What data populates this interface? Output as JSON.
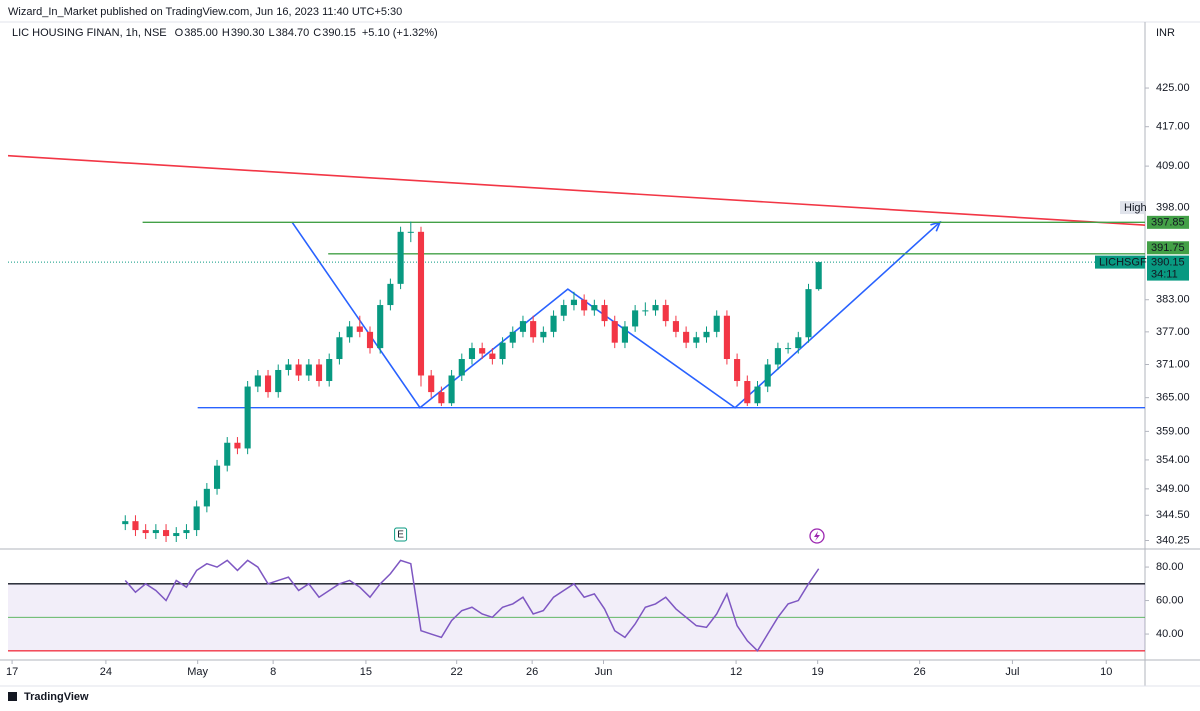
{
  "chart_data": {
    "type": "candlestick",
    "header": "Wizard_In_Market published on TradingView.com, Jun 16, 2023 11:40 UTC+5:30",
    "symbol": "LIC HOUSING FINAN, 1h, NSE",
    "ohlc_legend": [
      {
        "key": "O",
        "value": "385.00"
      },
      {
        "key": "H",
        "value": "390.30"
      },
      {
        "key": "L",
        "value": "384.70"
      },
      {
        "key": "C",
        "value": "390.15"
      }
    ],
    "change": "+5.10 (+1.32%)",
    "currency": "INR",
    "ticker": "LICHSGFIN",
    "countdown": "34:11",
    "event_marker": "E",
    "brand": "TradingView",
    "log_scale": true,
    "grid": false,
    "up_color": "#089981",
    "down_color": "#f23645",
    "ylim": [
      339.5,
      437.3
    ],
    "yticks": [
      {
        "value": 425,
        "label": "425.00"
      },
      {
        "value": 417,
        "label": "417.00"
      },
      {
        "value": 409,
        "label": "409.00"
      },
      {
        "value": 383,
        "label": "383.00"
      },
      {
        "value": 377,
        "label": "377.00"
      },
      {
        "value": 371,
        "label": "371.00"
      },
      {
        "value": 365,
        "label": "365.00"
      },
      {
        "value": 359,
        "label": "359.00"
      },
      {
        "value": 354,
        "label": "354.00"
      },
      {
        "value": 349,
        "label": "349.00"
      },
      {
        "value": 344.5,
        "label": "344.50"
      },
      {
        "value": 340.25,
        "label": "340.25"
      }
    ],
    "xlim": [
      -11,
      100.5
    ],
    "xticks": [
      {
        "value": -10.6,
        "label": "17"
      },
      {
        "value": -1.4,
        "label": "24"
      },
      {
        "value": 7.6,
        "label": "May"
      },
      {
        "value": 15.0,
        "label": "8"
      },
      {
        "value": 24.1,
        "label": "15"
      },
      {
        "value": 33.0,
        "label": "22"
      },
      {
        "value": 40.4,
        "label": "26"
      },
      {
        "value": 47.4,
        "label": "Jun"
      },
      {
        "value": 60.4,
        "label": "12"
      },
      {
        "value": 68.4,
        "label": "19"
      },
      {
        "value": 78.4,
        "label": "26"
      },
      {
        "value": 87.5,
        "label": "Jul"
      },
      {
        "value": 96.7,
        "label": "10"
      }
    ],
    "open": [
      343,
      343.5,
      342,
      341.5,
      342,
      341,
      341.5,
      342,
      346,
      349,
      353,
      357,
      356,
      367,
      369,
      366,
      370,
      371,
      369,
      371,
      368,
      372,
      376,
      378,
      377,
      374,
      382,
      386,
      396,
      396,
      369,
      366,
      364,
      369,
      372,
      374,
      373,
      372,
      375,
      377,
      379,
      376,
      377,
      380,
      382,
      383,
      381,
      382,
      379,
      375,
      378,
      381,
      381,
      382,
      379,
      377,
      375,
      376,
      377,
      380,
      372,
      368,
      364,
      367,
      371,
      374,
      374,
      376,
      385
    ],
    "high": [
      344.5,
      344.5,
      343,
      343,
      343,
      342.5,
      343,
      347,
      350,
      354,
      358,
      358,
      368,
      370,
      370,
      371,
      372,
      372,
      372,
      372,
      373,
      377,
      379,
      380,
      378,
      383,
      387,
      397,
      398,
      397,
      370,
      367,
      370,
      373,
      375,
      375,
      374,
      376,
      378,
      380,
      380,
      378,
      381,
      383,
      384.5,
      384,
      383,
      383,
      380,
      379,
      382,
      382.5,
      383,
      383,
      380,
      378,
      377,
      378,
      381,
      381,
      373,
      369,
      368,
      372,
      375,
      375,
      377,
      386,
      390.3
    ],
    "low": [
      342,
      341,
      340.5,
      340.5,
      340,
      340,
      340.5,
      341,
      345,
      348,
      352,
      355,
      355,
      366,
      365,
      365,
      369,
      368,
      368,
      367,
      367,
      371,
      375,
      376,
      373,
      373,
      381,
      385,
      394,
      367,
      365,
      363.5,
      363.5,
      368,
      371,
      372,
      371,
      371,
      374,
      376,
      375,
      375,
      376,
      379,
      381,
      380,
      380,
      378,
      374,
      374,
      377,
      380,
      380,
      378,
      376,
      374,
      374,
      375,
      376,
      371,
      367,
      363.5,
      363.5,
      366,
      370,
      373,
      373,
      375,
      384.7
    ],
    "close": [
      343.5,
      342,
      341.5,
      342,
      341,
      341.5,
      342,
      346,
      349,
      353,
      357,
      356,
      367,
      369,
      366,
      370,
      371,
      369,
      371,
      368,
      372,
      376,
      378,
      377,
      374,
      382,
      386,
      396,
      396,
      369,
      366,
      364,
      369,
      372,
      374,
      373,
      372,
      375,
      377,
      379,
      376,
      377,
      380,
      382,
      383,
      381,
      382,
      379,
      375,
      378,
      381,
      381,
      382,
      379,
      377,
      375,
      376,
      377,
      380,
      372,
      368,
      364,
      367,
      371,
      374,
      374,
      376,
      385,
      390.15
    ],
    "high_marker": {
      "label": "High",
      "value": 398,
      "value_label": "398.00"
    },
    "hlines": [
      {
        "value": 397.85,
        "from": 2.2,
        "color": "#43a047",
        "labeled": true
      },
      {
        "value": 391.75,
        "from": 20.4,
        "color": "#43a047",
        "labeled": true
      },
      {
        "value": 363.2,
        "from": 7.6,
        "color": "#2962ff",
        "labeled": false
      }
    ],
    "trendlines": [
      {
        "color": "#f23645",
        "arrow": false,
        "points": [
          [
            -11,
            411.1
          ],
          [
            100.5,
            397.3
          ]
        ]
      },
      {
        "color": "#2962ff",
        "arrow": true,
        "points": [
          [
            16.85,
            397.9
          ],
          [
            29.4,
            363.2
          ],
          [
            43.9,
            385
          ],
          [
            60.3,
            363.2
          ],
          [
            80.4,
            397.9
          ]
        ]
      }
    ],
    "rsi": {
      "color": "#7e57c2",
      "ylim": [
        24.5,
        88.4
      ],
      "yticks": [
        {
          "value": 80,
          "label": "80.00"
        },
        {
          "value": 60,
          "label": "60.00"
        },
        {
          "value": 40,
          "label": "40.00"
        }
      ],
      "upper": 70,
      "middle": 50,
      "lower": 30,
      "values": [
        72,
        65,
        70,
        66,
        60,
        72,
        68,
        78,
        82,
        80,
        84,
        78,
        84,
        80,
        70,
        72,
        74,
        66,
        70,
        62,
        66,
        70,
        72,
        68,
        62,
        70,
        76,
        84,
        82,
        42,
        40,
        38,
        48,
        54,
        56,
        52,
        50,
        56,
        58,
        62,
        52,
        54,
        62,
        66,
        70,
        62,
        64,
        55,
        42,
        38,
        46,
        56,
        58,
        62,
        55,
        50,
        45,
        44,
        52,
        64,
        45,
        36,
        30,
        40,
        50,
        58,
        60,
        70,
        79
      ]
    }
  }
}
